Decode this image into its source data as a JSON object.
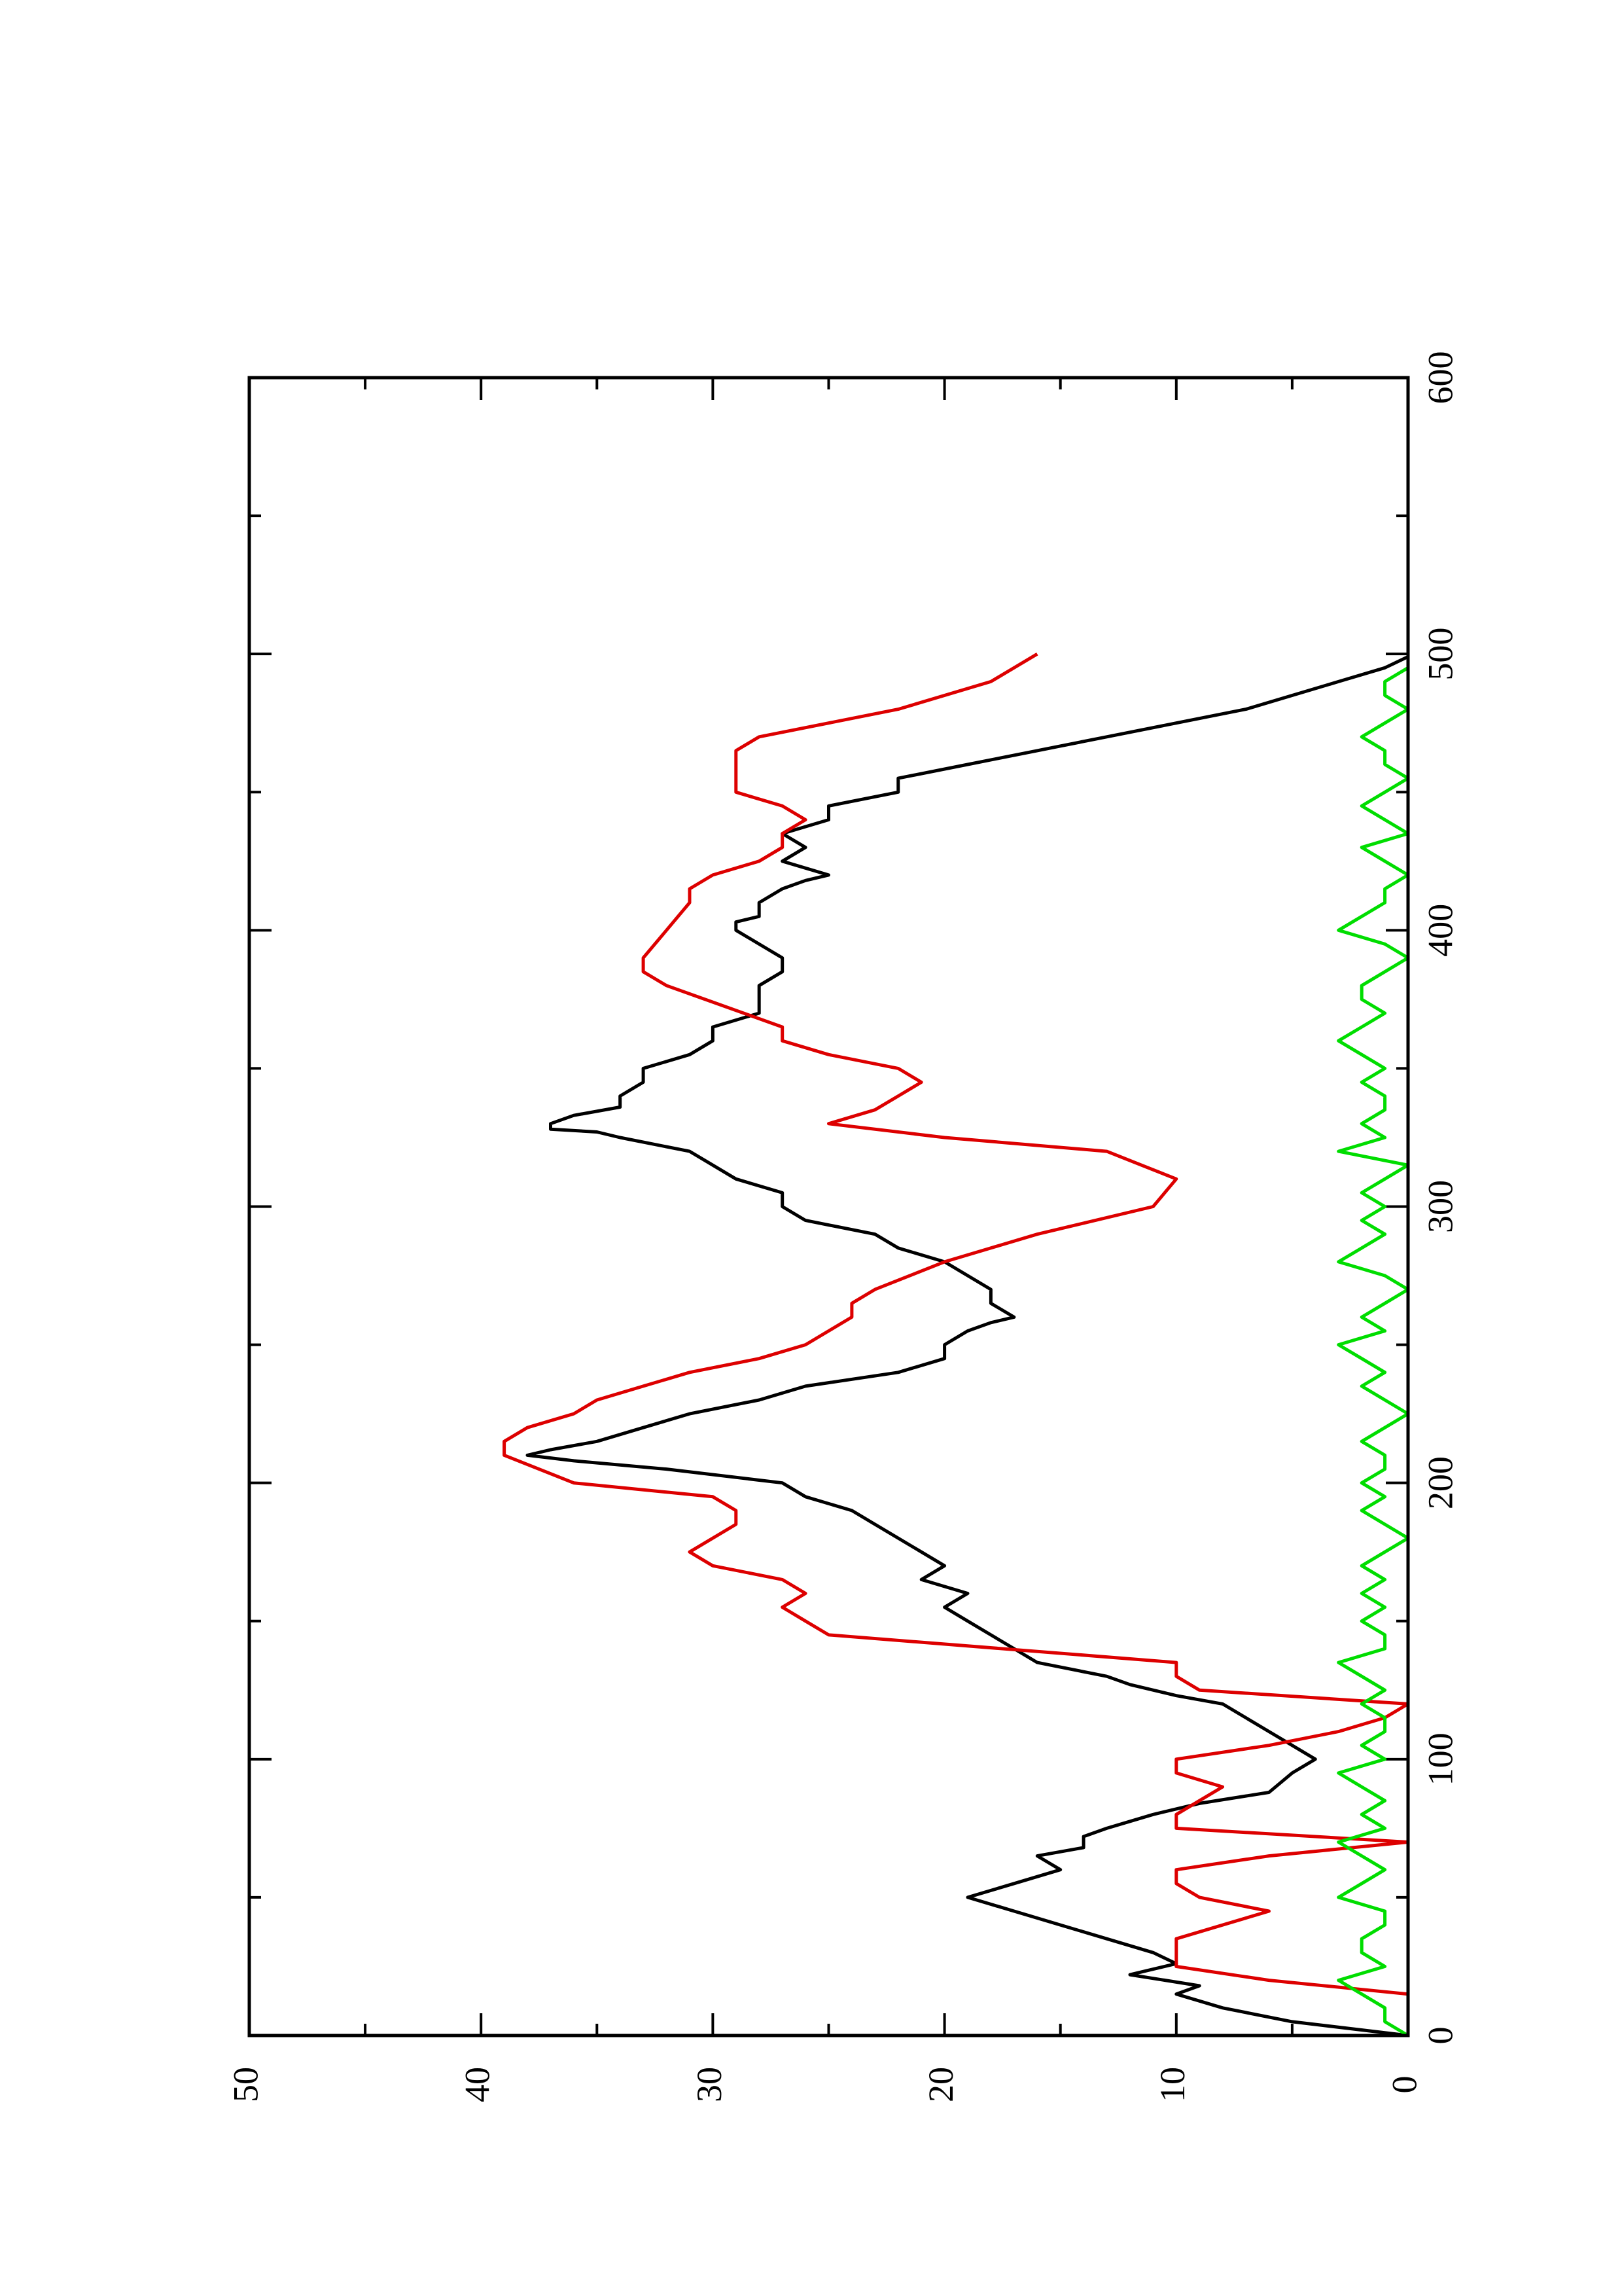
{
  "chart_data": {
    "type": "line",
    "orientation": "rotated-90-ccw",
    "xlim": [
      0,
      600
    ],
    "ylim": [
      0,
      50
    ],
    "x_ticks": [
      "0",
      "100",
      "200",
      "300",
      "400",
      "500",
      "600"
    ],
    "y_ticks": [
      "0",
      "10",
      "20",
      "30",
      "40",
      "50"
    ],
    "grid": false,
    "series": [
      {
        "color": "#000000",
        "x": [
          0,
          5,
          10,
          15,
          18,
          22,
          26,
          30,
          35,
          40,
          45,
          50,
          55,
          60,
          65,
          68,
          72,
          75,
          80,
          84,
          88,
          95,
          100,
          105,
          110,
          115,
          120,
          123,
          127,
          130,
          135,
          140,
          145,
          150,
          155,
          160,
          165,
          170,
          175,
          180,
          185,
          190,
          195,
          200,
          205,
          208,
          210,
          212,
          215,
          220,
          225,
          230,
          235,
          240,
          245,
          250,
          255,
          258,
          260,
          265,
          270,
          275,
          280,
          285,
          290,
          295,
          300,
          305,
          310,
          315,
          320,
          325,
          327,
          328,
          330,
          333,
          336,
          340,
          345,
          350,
          355,
          360,
          365,
          370,
          375,
          380,
          385,
          390,
          395,
          400,
          403,
          405,
          410,
          415,
          418,
          420,
          425,
          430,
          435,
          440,
          445,
          450,
          455,
          460,
          465,
          470,
          475,
          480,
          485,
          490,
          495,
          499
        ],
        "y": [
          0,
          5,
          8,
          10,
          9,
          12,
          10,
          11,
          13,
          15,
          17,
          19,
          17,
          15,
          16,
          14,
          14,
          13,
          11,
          9,
          6,
          5,
          4,
          5,
          6,
          7,
          8,
          10,
          12,
          13,
          16,
          17,
          18,
          19,
          20,
          19,
          21,
          20,
          21,
          22,
          23,
          24,
          26,
          27,
          32,
          36,
          38,
          37,
          35,
          33,
          31,
          28,
          26,
          22,
          20,
          20,
          19,
          18,
          17,
          18,
          18,
          19,
          20,
          22,
          23,
          26,
          27,
          27,
          29,
          30,
          31,
          34,
          35,
          37,
          37,
          36,
          34,
          34,
          33,
          33,
          31,
          30,
          30,
          28,
          28,
          28,
          27,
          27,
          28,
          29,
          29,
          28,
          28,
          27,
          26,
          25,
          27,
          26,
          27,
          25,
          25,
          22,
          22,
          19,
          16,
          13,
          10,
          7,
          5,
          3,
          1,
          0
        ]
      },
      {
        "color": "#dd0000",
        "x": [
          0,
          15,
          20,
          25,
          30,
          35,
          45,
          50,
          55,
          60,
          65,
          70,
          75,
          80,
          85,
          90,
          95,
          100,
          105,
          110,
          115,
          120,
          125,
          130,
          135,
          145,
          150,
          155,
          160,
          165,
          170,
          175,
          185,
          190,
          195,
          200,
          210,
          215,
          220,
          225,
          230,
          235,
          240,
          245,
          250,
          255,
          260,
          265,
          270,
          280,
          290,
          300,
          310,
          320,
          325,
          330,
          335,
          340,
          345,
          350,
          355,
          360,
          365,
          380,
          385,
          390,
          400,
          410,
          415,
          420,
          425,
          430,
          435,
          440,
          445,
          450,
          455,
          460,
          465,
          470,
          480,
          490,
          500
        ],
        "y": [
          0,
          0,
          6,
          10,
          10,
          10,
          6,
          9,
          10,
          10,
          6,
          0,
          10,
          10,
          9,
          8,
          10,
          10,
          6,
          3,
          1,
          0,
          9,
          10,
          10,
          25,
          26,
          27,
          26,
          27,
          30,
          31,
          29,
          29,
          30,
          36,
          39,
          39,
          38,
          36,
          35,
          33,
          31,
          28,
          26,
          25,
          24,
          24,
          23,
          20,
          16,
          11,
          10,
          13,
          20,
          25,
          23,
          22,
          21,
          22,
          25,
          27,
          27,
          32,
          33,
          33,
          32,
          31,
          31,
          30,
          28,
          27,
          27,
          26,
          27,
          29,
          29,
          29,
          29,
          28,
          22,
          18,
          16
        ]
      },
      {
        "color": "#00dd00",
        "x": [
          0,
          5,
          10,
          15,
          20,
          25,
          30,
          35,
          40,
          45,
          50,
          55,
          60,
          65,
          70,
          75,
          80,
          85,
          90,
          95,
          100,
          105,
          110,
          115,
          120,
          125,
          130,
          135,
          140,
          145,
          150,
          155,
          160,
          165,
          170,
          175,
          180,
          185,
          190,
          195,
          200,
          205,
          210,
          215,
          220,
          225,
          230,
          235,
          240,
          245,
          250,
          255,
          260,
          265,
          270,
          275,
          280,
          285,
          290,
          295,
          300,
          305,
          310,
          315,
          320,
          325,
          330,
          335,
          340,
          345,
          350,
          355,
          360,
          365,
          370,
          375,
          380,
          385,
          390,
          395,
          400,
          405,
          410,
          415,
          420,
          425,
          430,
          435,
          440,
          445,
          450,
          455,
          460,
          465,
          470,
          475,
          480,
          485,
          490,
          495,
          500
        ],
        "y": [
          0,
          1,
          1,
          2,
          3,
          1,
          2,
          2,
          1,
          1,
          3,
          2,
          1,
          2,
          3,
          1,
          2,
          1,
          2,
          3,
          1,
          2,
          1,
          1,
          2,
          1,
          2,
          3,
          1,
          1,
          2,
          1,
          2,
          1,
          2,
          1,
          0,
          1,
          2,
          1,
          2,
          1,
          1,
          2,
          1,
          0,
          1,
          2,
          1,
          2,
          3,
          1,
          2,
          1,
          0,
          1,
          3,
          2,
          1,
          2,
          1,
          2,
          1,
          0,
          3,
          1,
          2,
          1,
          1,
          2,
          1,
          2,
          3,
          2,
          1,
          2,
          2,
          1,
          0,
          1,
          3,
          2,
          1,
          1,
          0,
          1,
          2,
          0,
          1,
          2,
          1,
          0,
          1,
          1,
          2,
          1,
          0,
          1,
          1,
          0,
          0
        ]
      }
    ]
  }
}
